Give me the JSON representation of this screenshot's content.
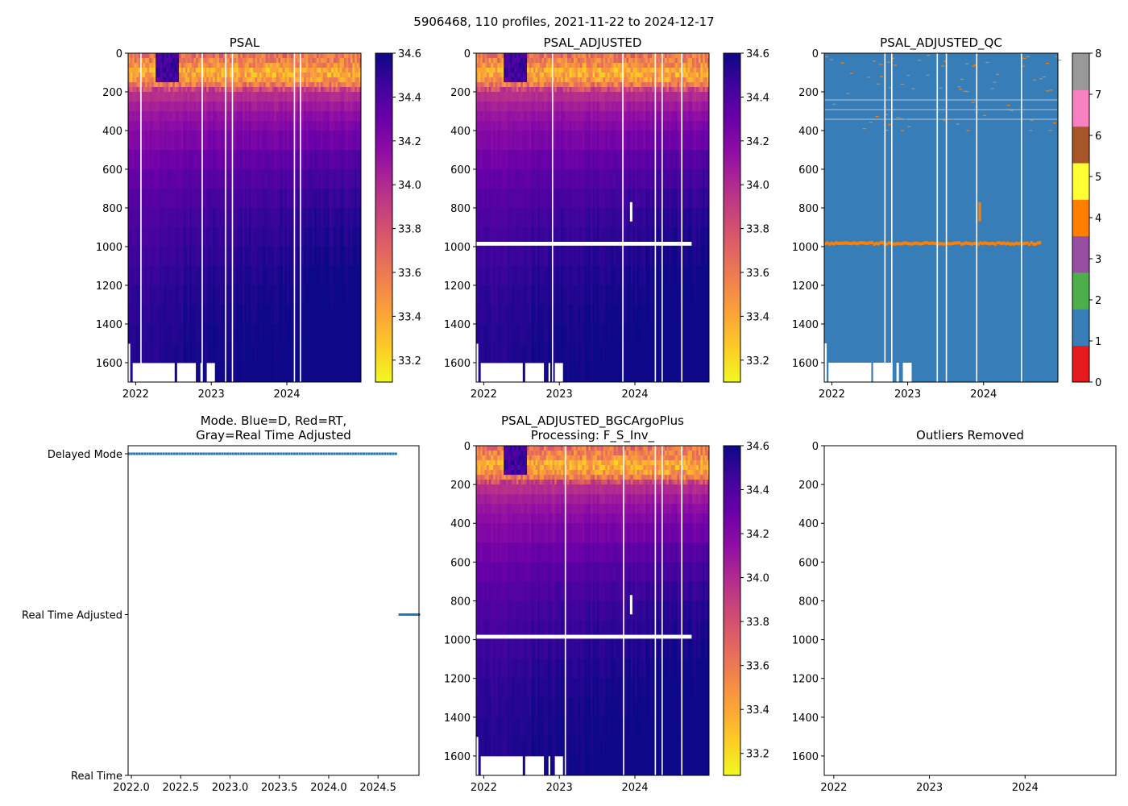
{
  "figure": {
    "title": "5906468, 110 profiles, 2021-11-22 to 2024-12-17"
  },
  "chart_data": [
    {
      "id": "psal",
      "type": "heatmap",
      "title_lines": [
        "PSAL"
      ],
      "xlim": [
        2021.9,
        2024.98
      ],
      "ylim": [
        1700,
        0
      ],
      "xticks": [
        "2022",
        "2023",
        "2024"
      ],
      "yticks": [
        "0",
        "200",
        "400",
        "600",
        "800",
        "1000",
        "1200",
        "1400",
        "1600"
      ],
      "profile_count": 110,
      "colorbar": {
        "colormap": "plasma_r",
        "range": [
          33.1,
          34.6
        ],
        "ticks": [
          "33.2",
          "33.4",
          "33.6",
          "33.8",
          "34.0",
          "34.2",
          "34.4",
          "34.6"
        ]
      },
      "mean_profile": {
        "pressure": [
          0,
          50,
          100,
          150,
          200,
          300,
          400,
          600,
          800,
          1000,
          1200,
          1400,
          1700
        ],
        "salinity": [
          33.65,
          33.55,
          33.35,
          33.5,
          33.95,
          34.1,
          34.18,
          34.3,
          34.4,
          34.45,
          34.5,
          34.53,
          34.56
        ]
      },
      "gap_dates": [
        2022.07,
        2022.88,
        2023.19,
        2023.28,
        2024.1,
        2024.18
      ],
      "bottom_gaps": [
        [
          2021.9,
          2021.93,
          1500
        ],
        [
          2021.96,
          2022.52,
          1600
        ],
        [
          2022.55,
          2022.81,
          1600
        ],
        [
          2022.85,
          2022.89,
          1600
        ],
        [
          2022.93,
          2023.04,
          1600
        ]
      ]
    },
    {
      "id": "psal_adj",
      "type": "heatmap",
      "title_lines": [
        "PSAL_ADJUSTED"
      ],
      "xlim": [
        2021.9,
        2024.98
      ],
      "ylim": [
        1700,
        0
      ],
      "xticks": [
        "2022",
        "2023",
        "2024"
      ],
      "yticks": [
        "0",
        "200",
        "400",
        "600",
        "800",
        "1000",
        "1200",
        "1400",
        "1600"
      ],
      "profile_count": 110,
      "colorbar": {
        "colormap": "plasma_r",
        "range": [
          33.1,
          34.6
        ],
        "ticks": [
          "33.2",
          "33.4",
          "33.6",
          "33.8",
          "34.0",
          "34.2",
          "34.4",
          "34.6"
        ]
      },
      "gap_dates": [
        2022.91,
        2023.84,
        2024.27,
        2024.36,
        2024.62
      ],
      "bottom_gaps": [
        [
          2021.9,
          2021.93,
          1500
        ],
        [
          2021.96,
          2022.52,
          1600
        ],
        [
          2022.55,
          2022.81,
          1600
        ],
        [
          2022.85,
          2022.89,
          1600
        ],
        [
          2022.93,
          2023.04,
          1600
        ]
      ],
      "masked_band": {
        "pressure": [
          975,
          995
        ],
        "dates": [
          2021.9,
          2024.75
        ]
      },
      "masked_patch": {
        "pressure": [
          770,
          870
        ],
        "date": 2023.95
      }
    },
    {
      "id": "qc",
      "type": "heatmap",
      "title_lines": [
        "PSAL_ADJUSTED_QC"
      ],
      "xlim": [
        2021.9,
        2024.98
      ],
      "ylim": [
        1700,
        0
      ],
      "xticks": [
        "2022",
        "2023",
        "2024"
      ],
      "yticks": [
        "0",
        "200",
        "400",
        "600",
        "800",
        "1000",
        "1200",
        "1400",
        "1600"
      ],
      "dominant_flag": 1,
      "flag4_band": {
        "pressure": [
          975,
          995
        ],
        "dates": [
          2021.9,
          2024.75
        ]
      },
      "flag4_patch": {
        "pressure": [
          770,
          870
        ],
        "date": 2023.95
      },
      "flag8_lines_pressure": [
        240,
        290,
        340
      ],
      "gap_dates": [
        2022.7,
        2022.79,
        2023.39,
        2023.51,
        2023.91,
        2024.5
      ],
      "bottom_gaps": [
        [
          2021.9,
          2021.93,
          1500
        ],
        [
          2021.96,
          2022.52,
          1600
        ],
        [
          2022.55,
          2022.81,
          1600
        ],
        [
          2022.85,
          2022.89,
          1600
        ],
        [
          2022.93,
          2023.04,
          1600
        ]
      ],
      "colorbar": {
        "ticks": [
          "0",
          "1",
          "2",
          "3",
          "4",
          "5",
          "6",
          "7",
          "8"
        ],
        "colors": [
          "#e41a1c",
          "#377eb8",
          "#4daf4a",
          "#984ea3",
          "#ff7f00",
          "#ffff33",
          "#a65628",
          "#f781bf",
          "#999999"
        ]
      }
    },
    {
      "id": "mode",
      "type": "scatter",
      "title_lines": [
        "Mode. Blue=D, Red=RT,",
        "Gray=Real Time Adjusted"
      ],
      "xlim": [
        2021.967,
        2024.915
      ],
      "ylim": [
        0,
        2.05
      ],
      "xticks": [
        "2022.0",
        "2022.5",
        "2023.0",
        "2023.5",
        "2024.0",
        "2024.5"
      ],
      "ytick_values": [
        2,
        1,
        0
      ],
      "yticks": [
        "Delayed Mode",
        "Real Time Adjusted",
        "Real Time"
      ],
      "series": [
        {
          "name": "Delayed Mode",
          "y": 2,
          "x_range": [
            2021.975,
            2024.68
          ],
          "count": 101,
          "color": "#1f77b4"
        },
        {
          "name": "Real Time Adjusted",
          "y": 1,
          "x_range": [
            2024.72,
            2024.915
          ],
          "count": 9,
          "color": "#1f77b4"
        }
      ]
    },
    {
      "id": "bgc",
      "type": "heatmap",
      "title_lines": [
        "PSAL_ADJUSTED_BGCArgoPlus",
        "Processing: F_S_Inv_"
      ],
      "xlim": [
        2021.9,
        2024.98
      ],
      "ylim": [
        1700,
        0
      ],
      "xticks": [
        "2022",
        "2023",
        "2024"
      ],
      "yticks": [
        "0",
        "200",
        "400",
        "600",
        "800",
        "1000",
        "1200",
        "1400",
        "1600"
      ],
      "profile_count": 110,
      "colorbar": {
        "colormap": "plasma_r",
        "range": [
          33.1,
          34.6
        ],
        "ticks": [
          "33.2",
          "33.4",
          "33.6",
          "33.8",
          "34.0",
          "34.2",
          "34.4",
          "34.6"
        ]
      },
      "gap_dates": [
        2023.08,
        2023.85,
        2024.27,
        2024.36,
        2024.62
      ],
      "bottom_gaps": [
        [
          2021.9,
          2021.93,
          1500
        ],
        [
          2021.96,
          2022.52,
          1600
        ],
        [
          2022.55,
          2022.81,
          1600
        ],
        [
          2022.85,
          2022.89,
          1600
        ],
        [
          2022.93,
          2023.04,
          1600
        ]
      ],
      "masked_band": {
        "pressure": [
          975,
          995
        ],
        "dates": [
          2021.9,
          2024.75
        ]
      },
      "masked_patch": {
        "pressure": [
          770,
          870
        ],
        "date": 2023.95
      }
    },
    {
      "id": "outliers",
      "type": "scatter",
      "title_lines": [
        "Outliers Removed"
      ],
      "xlim": [
        2021.9,
        2024.95
      ],
      "ylim": [
        1700,
        0
      ],
      "xticks": [
        "2022",
        "2023",
        "2024"
      ],
      "yticks": [
        "0",
        "200",
        "400",
        "600",
        "800",
        "1000",
        "1200",
        "1400",
        "1600"
      ],
      "points": []
    }
  ]
}
